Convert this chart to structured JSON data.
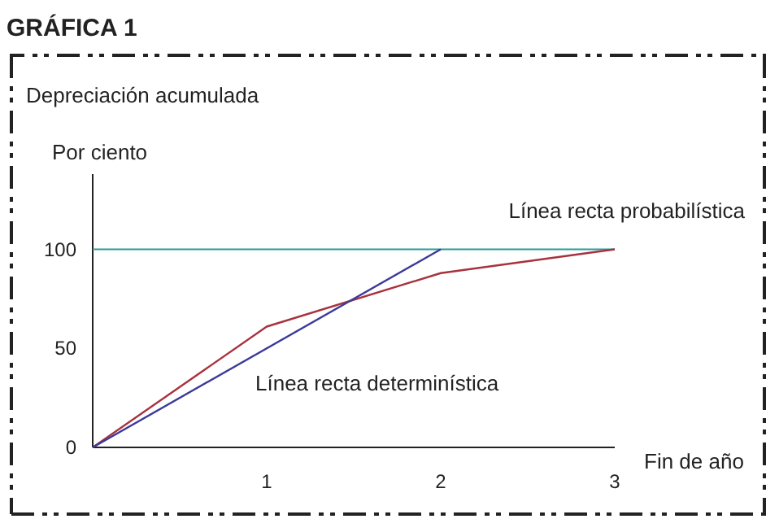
{
  "chart_data": {
    "type": "line",
    "title": "GRÁFICA 1",
    "subtitle": "Depreciación acumulada",
    "ylabel": "Por ciento",
    "xlabel": "Fin de año",
    "x": [
      0,
      1,
      2,
      3
    ],
    "series": [
      {
        "name": "Línea recta probabilística",
        "color": "#a8323e",
        "values": [
          0,
          61,
          88,
          100
        ]
      },
      {
        "name": "Línea recta determinística",
        "color": "#3a3a9a",
        "x": [
          0,
          2
        ],
        "values": [
          0,
          100
        ]
      }
    ],
    "ref_lines": [
      {
        "axis": "y",
        "value": 100,
        "color": "#2a9a9a"
      }
    ],
    "xlim": [
      0,
      3
    ],
    "ylim": [
      0,
      138
    ],
    "xticks": [
      1,
      2,
      3
    ],
    "yticks": [
      0,
      50,
      100
    ],
    "grid": false,
    "marker": "none",
    "line_style": "solid"
  }
}
